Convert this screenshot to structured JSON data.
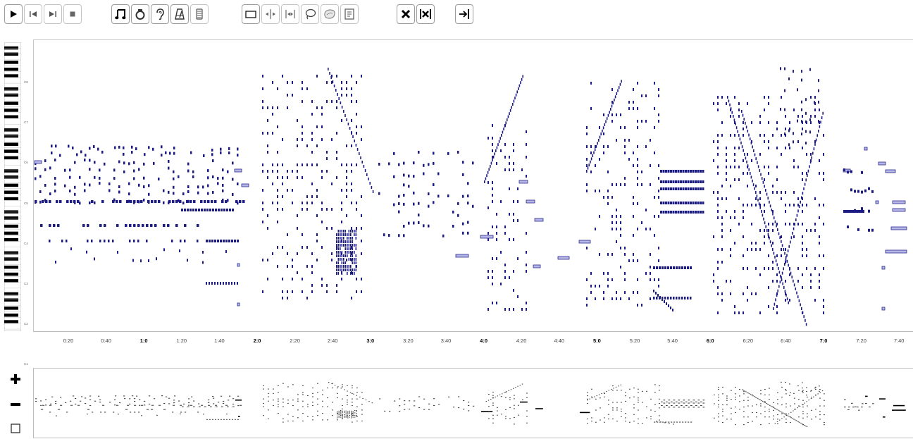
{
  "toolbar": {
    "buttons": [
      {
        "name": "play-button",
        "icon": "play-icon"
      },
      {
        "name": "skip-start-button",
        "icon": "skip-start-icon"
      },
      {
        "name": "skip-end-button",
        "icon": "skip-end-icon"
      },
      {
        "name": "stop-button",
        "icon": "stop-icon"
      },
      {
        "name": "notes-button",
        "icon": "music-note-icon"
      },
      {
        "name": "metronome-button",
        "icon": "ring-icon"
      },
      {
        "name": "listen-button",
        "icon": "ear-icon"
      },
      {
        "name": "metronome-tempo-button",
        "icon": "metronome-icon"
      },
      {
        "name": "layers-button",
        "icon": "layers-icon"
      },
      {
        "name": "select-box-button",
        "icon": "rectangle-icon"
      },
      {
        "name": "split-button",
        "icon": "split-icon"
      },
      {
        "name": "bracket-button",
        "icon": "bracket-icon"
      },
      {
        "name": "lasso-button",
        "icon": "lasso-icon"
      },
      {
        "name": "blob-button",
        "icon": "blob-icon"
      },
      {
        "name": "list-button",
        "icon": "list-icon"
      },
      {
        "name": "delete-button",
        "icon": "x-icon"
      },
      {
        "name": "delete-selection-button",
        "icon": "x-bracket-icon"
      },
      {
        "name": "exit-button",
        "icon": "exit-icon"
      }
    ]
  },
  "colors": {
    "note_fill": "#1c1c82",
    "note_light_fill": "#b7b7e6",
    "note_light_stroke": "#2a2a90",
    "overview_note": "#000000",
    "gridline": "#eeeeee",
    "axis": "#bdbdbd"
  },
  "keyboard": {
    "octave_labels": [
      "C8",
      "C7",
      "C6",
      "C5",
      "C4",
      "C3",
      "C2",
      "C1"
    ]
  },
  "timeline": {
    "labels": [
      {
        "text": "0:20",
        "major": false
      },
      {
        "text": "0:40",
        "major": false
      },
      {
        "text": "1:0",
        "major": true
      },
      {
        "text": "1:20",
        "major": false
      },
      {
        "text": "1:40",
        "major": false
      },
      {
        "text": "2:0",
        "major": true
      },
      {
        "text": "2:20",
        "major": false
      },
      {
        "text": "2:40",
        "major": false
      },
      {
        "text": "3:0",
        "major": true
      },
      {
        "text": "3:20",
        "major": false
      },
      {
        "text": "3:40",
        "major": false
      },
      {
        "text": "4:0",
        "major": true
      },
      {
        "text": "4:20",
        "major": false
      },
      {
        "text": "4:40",
        "major": false
      },
      {
        "text": "5:0",
        "major": true
      },
      {
        "text": "5:20",
        "major": false
      },
      {
        "text": "5:40",
        "major": false
      },
      {
        "text": "6:0",
        "major": true
      },
      {
        "text": "6:20",
        "major": false
      },
      {
        "text": "6:40",
        "major": false
      },
      {
        "text": "7:0",
        "major": true
      },
      {
        "text": "7:20",
        "major": false
      },
      {
        "text": "7:40",
        "major": false
      }
    ]
  },
  "overview_controls": [
    {
      "name": "zoom-in-button",
      "icon": "plus-icon"
    },
    {
      "name": "zoom-out-button",
      "icon": "minus-icon"
    },
    {
      "name": "zoom-fit-button",
      "icon": "square-icon"
    }
  ]
}
